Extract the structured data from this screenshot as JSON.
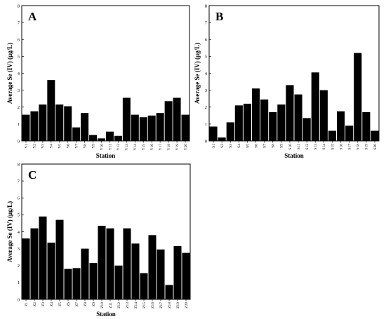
{
  "chart_data": [
    {
      "type": "bar",
      "panel": "A",
      "xlabel": "Station",
      "ylabel": "Average Se (IV) (μg/L)",
      "ylim": [
        0,
        8
      ],
      "yticks": [
        0,
        1,
        2,
        3,
        4,
        5,
        6,
        7,
        8
      ],
      "categories": [
        "Y1",
        "Y2",
        "Y3",
        "Y4",
        "Y5",
        "Y6",
        "Y7",
        "Y8",
        "Y9",
        "Y10",
        "Y11",
        "Y12",
        "Y13",
        "Y14",
        "Y15",
        "Y16",
        "Y17",
        "Y18",
        "Y19",
        "Y20"
      ],
      "values": [
        1.55,
        1.75,
        2.15,
        3.6,
        2.15,
        2.05,
        0.8,
        1.65,
        0.35,
        0.15,
        0.55,
        0.3,
        2.55,
        1.55,
        1.4,
        1.5,
        1.65,
        2.35,
        2.55,
        1.55
      ],
      "bar_color": "#000000",
      "grid": false
    },
    {
      "type": "bar",
      "panel": "B",
      "xlabel": "Station",
      "ylabel": "Average Se (IV) (μg/L)",
      "ylim": [
        0,
        8
      ],
      "yticks": [
        0,
        1,
        2,
        3,
        4,
        5,
        6,
        7,
        8
      ],
      "categories": [
        "S1",
        "S2",
        "S3",
        "S4",
        "S5",
        "S6",
        "S7",
        "S8",
        "S9",
        "S10",
        "S11",
        "S12",
        "S13",
        "S14",
        "S15",
        "S16",
        "S17",
        "S18",
        "S19",
        "S20"
      ],
      "values": [
        0.85,
        0.2,
        1.1,
        2.1,
        2.2,
        3.1,
        2.45,
        1.7,
        2.15,
        3.3,
        2.75,
        1.35,
        4.05,
        3.0,
        0.6,
        1.75,
        0.9,
        5.2,
        1.7,
        0.6
      ],
      "bar_color": "#000000",
      "grid": false
    },
    {
      "type": "bar",
      "panel": "C",
      "xlabel": "Station",
      "ylabel": "Average Se (IV) (μg/L)",
      "ylim": [
        0,
        8
      ],
      "yticks": [
        0,
        1,
        2,
        3,
        4,
        5,
        6,
        7,
        8
      ],
      "categories": [
        "Z1",
        "Z2",
        "Z3",
        "Z4",
        "Z5",
        "Z6",
        "Z7",
        "Z8",
        "Z9",
        "Z10",
        "Z11",
        "Z12",
        "Z13",
        "Z14",
        "Z15",
        "Z16",
        "Z17",
        "Z18",
        "Z19",
        "Z20"
      ],
      "values": [
        3.6,
        4.2,
        4.9,
        3.35,
        4.7,
        1.8,
        1.85,
        3.0,
        2.15,
        4.35,
        4.2,
        2.0,
        4.2,
        3.3,
        1.55,
        3.8,
        2.95,
        0.85,
        3.15,
        2.75
      ],
      "bar_color": "#000000",
      "grid": false
    }
  ]
}
